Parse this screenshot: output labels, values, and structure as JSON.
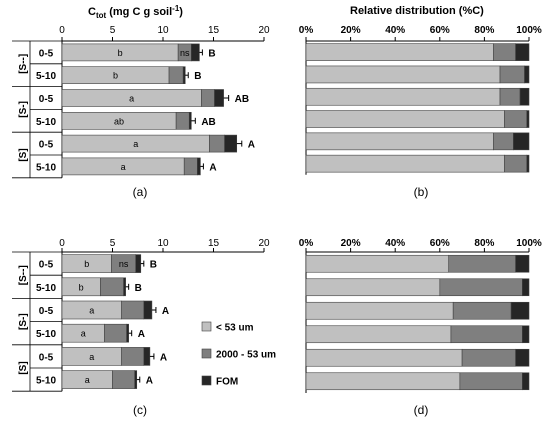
{
  "colors": {
    "fine": "#c0c0c0",
    "mid": "#7f7f7f",
    "fom": "#262626",
    "frame": "#000000"
  },
  "labels": {
    "ctot_prefix": "C",
    "ctot_sub": "tot",
    "ctot_suffix": " (mg C g soil",
    "ctot_sup": "-1",
    "ctot_close": ")",
    "rel_title": "Relative distribution (%C)",
    "panel_a": "(a)",
    "panel_b": "(b)",
    "panel_c": "(c)",
    "panel_d": "(d)",
    "legend": [
      "< 53 um",
      "2000 - 53 um",
      "FOM"
    ]
  },
  "chart_data": [
    {
      "panel": "(a)",
      "type": "bar",
      "stacked": true,
      "orientation": "horizontal",
      "title": "Ctot (mg C g soil-1)",
      "xlim": [
        0,
        20
      ],
      "xticks": [
        "0",
        "5",
        "10",
        "15",
        "20"
      ],
      "groups": [
        "[S--]",
        "[S-]",
        "[S]"
      ],
      "categories": [
        "0-5",
        "5-10",
        "0-5",
        "5-10",
        "0-5",
        "5-10"
      ],
      "series": [
        {
          "name": "< 53 um",
          "values": [
            11.5,
            10.6,
            13.8,
            11.3,
            14.6,
            12.1
          ]
        },
        {
          "name": "2000 - 53 um",
          "values": [
            1.3,
            1.4,
            1.3,
            1.3,
            1.5,
            1.3
          ]
        },
        {
          "name": "FOM",
          "values": [
            0.8,
            0.2,
            0.9,
            0.2,
            1.2,
            0.3
          ]
        }
      ],
      "bar_labels": [
        "b",
        "b",
        "a",
        "ab",
        "a",
        "a"
      ],
      "extra_labels": [
        "ns",
        "",
        "",
        "",
        "",
        ""
      ],
      "letters": [
        "B",
        "B",
        "AB",
        "AB",
        "A",
        "A"
      ],
      "error": [
        0.3,
        0.3,
        0.5,
        0.4,
        0.5,
        0.3
      ]
    },
    {
      "panel": "(b)",
      "type": "bar",
      "stacked": true,
      "orientation": "horizontal",
      "title": "Relative distribution (%C)",
      "xlim": [
        0,
        100
      ],
      "xticks": [
        "0%",
        "20%",
        "40%",
        "60%",
        "80%",
        "100%"
      ],
      "categories": [
        "0-5",
        "5-10",
        "0-5",
        "5-10",
        "0-5",
        "5-10"
      ],
      "series": [
        {
          "name": "< 53 um",
          "values": [
            84,
            87,
            87,
            89,
            84,
            89
          ]
        },
        {
          "name": "2000 - 53 um",
          "values": [
            10,
            11,
            9,
            10,
            9,
            10
          ]
        },
        {
          "name": "FOM",
          "values": [
            6,
            2,
            4,
            1,
            7,
            1
          ]
        }
      ]
    },
    {
      "panel": "(c)",
      "type": "bar",
      "stacked": true,
      "orientation": "horizontal",
      "xlim": [
        0,
        20
      ],
      "xticks": [
        "0",
        "5",
        "10",
        "15",
        "20"
      ],
      "groups": [
        "[S--]",
        "[S-]",
        "[S]"
      ],
      "categories": [
        "0-5",
        "5-10",
        "0-5",
        "5-10",
        "0-5",
        "5-10"
      ],
      "series": [
        {
          "name": "< 53 um",
          "values": [
            4.9,
            3.8,
            5.9,
            4.2,
            5.9,
            5.0
          ]
        },
        {
          "name": "2000 - 53 um",
          "values": [
            2.4,
            2.3,
            2.2,
            2.2,
            2.2,
            2.2
          ]
        },
        {
          "name": "FOM",
          "values": [
            0.5,
            0.2,
            0.8,
            0.2,
            0.6,
            0.2
          ]
        }
      ],
      "bar_labels": [
        "b",
        "b",
        "a",
        "a",
        "a",
        "a"
      ],
      "extra_labels": [
        "ns",
        "",
        "",
        "",
        "",
        ""
      ],
      "letters": [
        "B",
        "B",
        "A",
        "A",
        "A",
        "A"
      ],
      "error": [
        0.3,
        0.3,
        0.4,
        0.3,
        0.4,
        0.3
      ]
    },
    {
      "panel": "(d)",
      "type": "bar",
      "stacked": true,
      "orientation": "horizontal",
      "xlim": [
        0,
        100
      ],
      "xticks": [
        "0%",
        "20%",
        "40%",
        "60%",
        "80%",
        "100%"
      ],
      "categories": [
        "0-5",
        "5-10",
        "0-5",
        "5-10",
        "0-5",
        "5-10"
      ],
      "series": [
        {
          "name": "< 53 um",
          "values": [
            64,
            60,
            66,
            65,
            70,
            69
          ]
        },
        {
          "name": "2000 - 53 um",
          "values": [
            30,
            37,
            26,
            32,
            24,
            28
          ]
        },
        {
          "name": "FOM",
          "values": [
            6,
            3,
            8,
            3,
            6,
            3
          ]
        }
      ]
    }
  ]
}
